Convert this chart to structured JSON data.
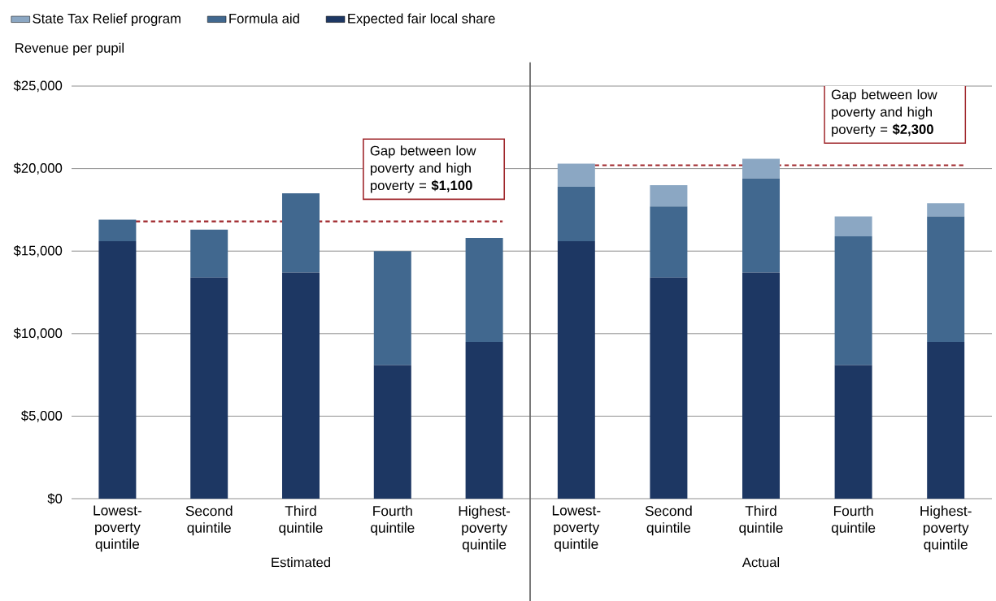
{
  "chart_data": [
    {
      "type": "bar",
      "stacked": true,
      "xlabel": "Estimated",
      "ylabel": "Revenue per pupil",
      "categories": [
        "Lowest-poverty quintile",
        "Second quintile",
        "Third quintile",
        "Fourth quintile",
        "Highest-poverty quintile"
      ],
      "series": [
        {
          "name": "Expected fair local share",
          "color": "#1d3763",
          "values": [
            15600,
            13400,
            13700,
            8100,
            9500
          ]
        },
        {
          "name": "Formula aid",
          "color": "#41688f",
          "values": [
            1300,
            2900,
            4800,
            6900,
            6300
          ]
        },
        {
          "name": "State Tax Relief program",
          "color": "#8ba7c3",
          "values": [
            null,
            null,
            null,
            null,
            null
          ]
        }
      ],
      "ylim": [
        0,
        25000
      ],
      "yticks": [
        {
          "value": 0,
          "label": "$0"
        },
        {
          "value": 5000,
          "label": "$5,000"
        },
        {
          "value": 10000,
          "label": "$10,000"
        },
        {
          "value": 15000,
          "label": "$15,000"
        },
        {
          "value": 20000,
          "label": "$20,000"
        },
        {
          "value": 25000,
          "label": "$25,000"
        }
      ],
      "grid": "y",
      "legend": "top left",
      "ref_lines": [
        {
          "axis": "y",
          "value": 16800,
          "color": "#a0282d",
          "line_style": "dashed"
        }
      ],
      "annotations": [
        "Gap between low poverty and high poverty = **$1,100**"
      ]
    },
    {
      "type": "bar",
      "stacked": true,
      "xlabel": "Actual",
      "categories": [
        "Lowest-poverty quintile",
        "Second quintile",
        "Third quintile",
        "Fourth quintile",
        "Highest-poverty quintile"
      ],
      "series": [
        {
          "color": "#1d3763",
          "values": [
            15600,
            13400,
            13700,
            8100,
            9500
          ]
        },
        {
          "color": "#41688f",
          "values": [
            3300,
            4300,
            5700,
            7800,
            7600
          ]
        },
        {
          "color": "#8ba7c3",
          "values": [
            1400,
            1300,
            1200,
            1200,
            800
          ]
        }
      ],
      "ylim": [
        0,
        25000
      ],
      "yticks": [
        0,
        5000,
        10000,
        15000,
        20000,
        25000
      ],
      "tick_labels": "x",
      "grid": "y",
      "ref_lines": [
        {
          "axis": "y",
          "value": 20200,
          "color": "#a0282d",
          "line_style": "dashed"
        }
      ],
      "annotations": [
        "Gap between low poverty and high poverty = **$2,300**"
      ]
    }
  ]
}
